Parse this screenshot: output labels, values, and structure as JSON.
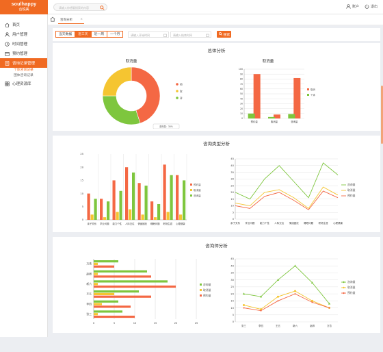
{
  "app": {
    "logo_main": "soulhappy",
    "logo_sub": "合锐美"
  },
  "header": {
    "search_placeholder": "请输入你想要搜索的内容",
    "account": "账户",
    "logout": "退出"
  },
  "sidebar": {
    "items": [
      {
        "label": "首页",
        "icon": "home-icon"
      },
      {
        "label": "用户管理",
        "icon": "user-icon"
      },
      {
        "label": "时间管理",
        "icon": "clock-icon"
      },
      {
        "label": "预约管理",
        "icon": "calendar-icon"
      },
      {
        "label": "咨询记录管理",
        "icon": "document-icon",
        "active": true
      },
      {
        "label": "心理资源库",
        "icon": "grid-icon"
      }
    ],
    "subitems": [
      {
        "label": "个体咨询记录",
        "active": true
      },
      {
        "label": "团体咨询记录"
      }
    ]
  },
  "tabs": [
    {
      "label": "咨询分析"
    }
  ],
  "filters": {
    "ranges": [
      "当天数据",
      "近三天",
      "近一周",
      "一个月"
    ],
    "active_index": 1,
    "start_placeholder": "请输入开始时间",
    "end_placeholder": "请输入结束时间",
    "query": "搜索"
  },
  "overall": {
    "title": "总体分析",
    "pie": {
      "title": "取消量",
      "tooltip": "咨询量：30%",
      "legend": [
        "预约量",
        "取消量",
        "咨询量"
      ]
    },
    "bar": {
      "title": "取消量",
      "legend": [
        "取消",
        "个体"
      ]
    }
  },
  "type_section": {
    "title": "咨询类型分析"
  },
  "counselor_section": {
    "title": "咨询师分析"
  },
  "colors": {
    "accent": "#f06a22",
    "red": "#f46844",
    "yellow": "#f5c531",
    "green": "#7ec63e"
  },
  "chart_data": [
    {
      "type": "pie",
      "title": "取消量",
      "categories": [
        "预约量",
        "取消量",
        "咨询量"
      ],
      "values": [
        45,
        25,
        30
      ],
      "donut": true
    },
    {
      "type": "bar",
      "title": "取消量",
      "categories": [
        "预约量",
        "取消量",
        "咨询量"
      ],
      "series": [
        {
          "name": "取消",
          "values": [
            90,
            8,
            82
          ]
        },
        {
          "name": "个体",
          "values": [
            10,
            3,
            9
          ]
        }
      ],
      "ylim": [
        0,
        100
      ],
      "yticks": [
        0,
        10,
        20,
        30,
        40,
        50,
        60,
        70,
        80,
        90,
        100
      ],
      "legend": "right"
    },
    {
      "type": "bar",
      "categories": [
        "亲子关系",
        "学业问题",
        "能力个性",
        "人际交往",
        "情绪困扰",
        "睡眠问题",
        "职场生涯",
        "心理健康"
      ],
      "series": [
        {
          "name": "预约量",
          "values": [
            10,
            8,
            15,
            20,
            14,
            7,
            21,
            17
          ]
        },
        {
          "name": "取消量",
          "values": [
            2,
            1,
            3,
            4,
            2,
            1,
            3,
            2
          ]
        },
        {
          "name": "咨询量",
          "values": [
            8,
            7,
            11,
            18,
            13,
            6,
            17,
            15
          ]
        }
      ],
      "ylim": [
        0,
        25
      ],
      "yticks": [
        0,
        5,
        10,
        15,
        20,
        25
      ],
      "legend": "right"
    },
    {
      "type": "line",
      "categories": [
        "亲子关系",
        "学业问题",
        "能力个性",
        "人际交往",
        "情绪困扰",
        "睡眠问题",
        "职场生涯",
        "心理健康"
      ],
      "series": [
        {
          "name": "咨询量",
          "values": [
            20,
            15,
            30,
            40,
            28,
            16,
            42,
            33
          ]
        },
        {
          "name": "取消量",
          "values": [
            12,
            10,
            20,
            22,
            16,
            8,
            24,
            18
          ]
        },
        {
          "name": "预约量",
          "values": [
            10,
            8,
            17,
            20,
            14,
            7,
            21,
            16
          ]
        }
      ],
      "ylim": [
        0,
        45
      ],
      "yticks": [
        0,
        5,
        10,
        15,
        20,
        25,
        30,
        35,
        40,
        45
      ],
      "legend": "right"
    },
    {
      "type": "bar",
      "orientation": "horizontal",
      "categories": [
        "张三",
        "李四",
        "王五",
        "新六",
        "赵卿",
        "万杏"
      ],
      "series": [
        {
          "name": "咨询量",
          "values": [
            7,
            6,
            11,
            18,
            13,
            6
          ]
        },
        {
          "name": "取消量",
          "values": [
            1,
            2,
            5,
            1,
            1,
            1
          ]
        },
        {
          "name": "预约量",
          "values": [
            10,
            9,
            14,
            20,
            14,
            5
          ]
        }
      ],
      "xlim": [
        0,
        25
      ],
      "xticks": [
        0,
        5,
        10,
        15,
        20,
        25
      ],
      "legend": "right"
    },
    {
      "type": "line",
      "categories": [
        "张三",
        "李四",
        "王五",
        "新六",
        "赵卿",
        "万杏"
      ],
      "series": [
        {
          "name": "咨询量",
          "values": [
            20,
            18,
            30,
            40,
            28,
            13
          ]
        },
        {
          "name": "取消量",
          "values": [
            12,
            9,
            18,
            22,
            15,
            10
          ]
        },
        {
          "name": "预约量",
          "values": [
            10,
            8,
            15,
            20,
            14,
            10
          ]
        }
      ],
      "ylim": [
        0,
        45
      ],
      "yticks": [
        0,
        5,
        10,
        15,
        20,
        25,
        30,
        35,
        40,
        45
      ],
      "legend": "right"
    }
  ]
}
